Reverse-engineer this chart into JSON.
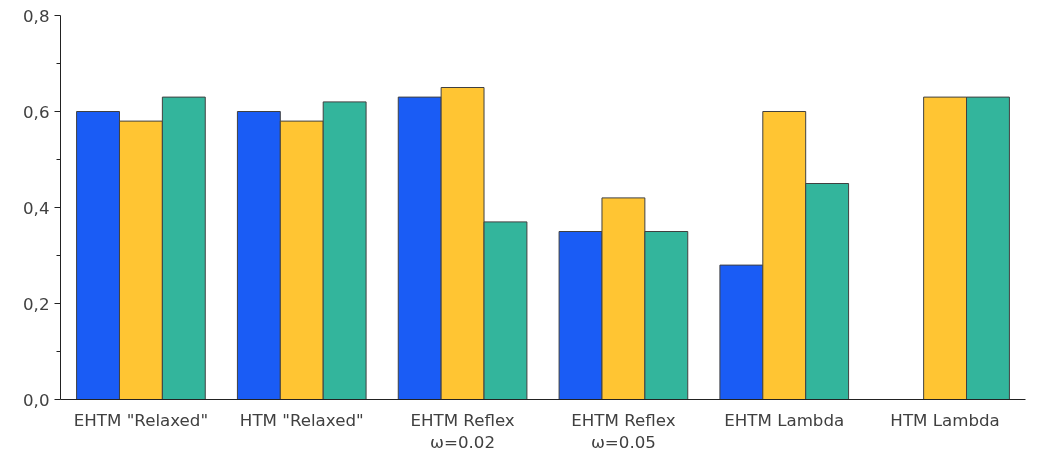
{
  "chart_data": {
    "type": "bar",
    "categories": [
      "EHTM \"Relaxed\"",
      "HTM \"Relaxed\"",
      "EHTM Reflex\nω=0.02",
      "EHTM Reflex\nω=0.05",
      "EHTM Lambda",
      "HTM Lambda"
    ],
    "series": [
      {
        "color": "#1a5cf5",
        "values": [
          0.6,
          0.6,
          0.63,
          0.35,
          0.28,
          null
        ]
      },
      {
        "color": "#ffc533",
        "values": [
          0.58,
          0.58,
          0.65,
          0.42,
          0.6,
          0.63
        ]
      },
      {
        "color": "#33b59c",
        "values": [
          0.63,
          0.62,
          0.37,
          0.35,
          0.45,
          0.63
        ]
      }
    ],
    "ylim": [
      0,
      0.8
    ],
    "yticks": [
      {
        "value": 0,
        "label": "0,0"
      },
      {
        "value": 0.2,
        "label": "0,2"
      },
      {
        "value": 0.4,
        "label": "0,4"
      },
      {
        "value": 0.6,
        "label": "0,6"
      },
      {
        "value": 0.8,
        "label": "0,8"
      }
    ],
    "grid": false
  }
}
